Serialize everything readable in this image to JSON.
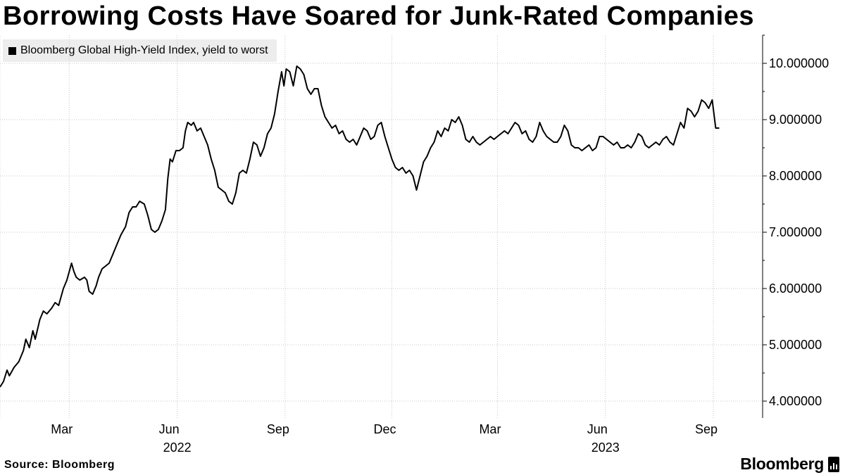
{
  "header": {
    "title": "Borrowing Costs Have Soared for Junk-Rated Companies"
  },
  "footer": {
    "source": "Source: Bloomberg",
    "logo_text": "Bloomberg"
  },
  "colors": {
    "line": "#000000",
    "grid": "#c8c8c8",
    "legend_bg": "#ededed"
  },
  "chart_data": {
    "type": "line",
    "title": "Borrowing Costs Have Soared for Junk-Rated Companies",
    "legend_position": "top-left",
    "grid": true,
    "xlabel": "",
    "ylabel": "",
    "ylim": [
      3.7,
      10.5
    ],
    "xlim": [
      0,
      650
    ],
    "y_ticks": [
      {
        "value": 4,
        "label": "4.000000"
      },
      {
        "value": 5,
        "label": "5.000000"
      },
      {
        "value": 6,
        "label": "6.000000"
      },
      {
        "value": 7,
        "label": "7.000000"
      },
      {
        "value": 8,
        "label": "8.000000"
      },
      {
        "value": 9,
        "label": "9.000000"
      },
      {
        "value": 10,
        "label": "10.000000"
      }
    ],
    "x_ticks": [
      {
        "day": 0,
        "label": ""
      },
      {
        "day": 59,
        "label": "Mar"
      },
      {
        "day": 151,
        "label": "Jun"
      },
      {
        "day": 243,
        "label": "Sep"
      },
      {
        "day": 334,
        "label": "Dec"
      },
      {
        "day": 424,
        "label": "Mar"
      },
      {
        "day": 516,
        "label": "Jun"
      },
      {
        "day": 608,
        "label": "Sep"
      }
    ],
    "year_labels": [
      {
        "day": 151,
        "label": "2022"
      },
      {
        "day": 516,
        "label": "2023"
      }
    ],
    "series": [
      {
        "name": "Bloomberg Global High-Yield Index, yield to worst",
        "points": [
          [
            0,
            4.25
          ],
          [
            3,
            4.35
          ],
          [
            6,
            4.55
          ],
          [
            8,
            4.45
          ],
          [
            12,
            4.6
          ],
          [
            16,
            4.7
          ],
          [
            20,
            4.9
          ],
          [
            22,
            5.1
          ],
          [
            25,
            4.95
          ],
          [
            28,
            5.25
          ],
          [
            30,
            5.1
          ],
          [
            34,
            5.45
          ],
          [
            37,
            5.6
          ],
          [
            40,
            5.55
          ],
          [
            44,
            5.65
          ],
          [
            47,
            5.75
          ],
          [
            50,
            5.7
          ],
          [
            54,
            6.0
          ],
          [
            57,
            6.15
          ],
          [
            59,
            6.3
          ],
          [
            61,
            6.45
          ],
          [
            63,
            6.3
          ],
          [
            65,
            6.2
          ],
          [
            68,
            6.15
          ],
          [
            72,
            6.2
          ],
          [
            74,
            6.15
          ],
          [
            76,
            5.95
          ],
          [
            79,
            5.9
          ],
          [
            82,
            6.05
          ],
          [
            84,
            6.2
          ],
          [
            87,
            6.35
          ],
          [
            90,
            6.4
          ],
          [
            93,
            6.45
          ],
          [
            96,
            6.6
          ],
          [
            100,
            6.8
          ],
          [
            103,
            6.95
          ],
          [
            107,
            7.1
          ],
          [
            110,
            7.35
          ],
          [
            113,
            7.45
          ],
          [
            116,
            7.45
          ],
          [
            119,
            7.55
          ],
          [
            123,
            7.5
          ],
          [
            126,
            7.3
          ],
          [
            129,
            7.05
          ],
          [
            132,
            7.0
          ],
          [
            135,
            7.05
          ],
          [
            138,
            7.2
          ],
          [
            141,
            7.4
          ],
          [
            143,
            7.95
          ],
          [
            145,
            8.3
          ],
          [
            147,
            8.25
          ],
          [
            150,
            8.45
          ],
          [
            153,
            8.45
          ],
          [
            156,
            8.5
          ],
          [
            158,
            8.8
          ],
          [
            160,
            8.95
          ],
          [
            163,
            8.9
          ],
          [
            165,
            8.95
          ],
          [
            168,
            8.8
          ],
          [
            171,
            8.85
          ],
          [
            174,
            8.7
          ],
          [
            177,
            8.55
          ],
          [
            180,
            8.3
          ],
          [
            183,
            8.1
          ],
          [
            186,
            7.8
          ],
          [
            189,
            7.75
          ],
          [
            192,
            7.7
          ],
          [
            195,
            7.55
          ],
          [
            198,
            7.5
          ],
          [
            201,
            7.7
          ],
          [
            204,
            8.05
          ],
          [
            207,
            8.1
          ],
          [
            210,
            8.05
          ],
          [
            213,
            8.3
          ],
          [
            216,
            8.6
          ],
          [
            219,
            8.55
          ],
          [
            222,
            8.35
          ],
          [
            225,
            8.5
          ],
          [
            228,
            8.75
          ],
          [
            231,
            8.85
          ],
          [
            234,
            9.1
          ],
          [
            237,
            9.5
          ],
          [
            240,
            9.85
          ],
          [
            242,
            9.6
          ],
          [
            244,
            9.9
          ],
          [
            247,
            9.85
          ],
          [
            250,
            9.6
          ],
          [
            253,
            9.95
          ],
          [
            256,
            9.9
          ],
          [
            259,
            9.8
          ],
          [
            262,
            9.55
          ],
          [
            265,
            9.45
          ],
          [
            268,
            9.55
          ],
          [
            271,
            9.55
          ],
          [
            274,
            9.25
          ],
          [
            277,
            9.05
          ],
          [
            280,
            8.95
          ],
          [
            283,
            8.85
          ],
          [
            286,
            8.9
          ],
          [
            289,
            8.75
          ],
          [
            292,
            8.8
          ],
          [
            295,
            8.65
          ],
          [
            298,
            8.6
          ],
          [
            301,
            8.65
          ],
          [
            304,
            8.55
          ],
          [
            307,
            8.7
          ],
          [
            310,
            8.85
          ],
          [
            313,
            8.8
          ],
          [
            316,
            8.65
          ],
          [
            319,
            8.7
          ],
          [
            322,
            8.9
          ],
          [
            325,
            8.95
          ],
          [
            328,
            8.7
          ],
          [
            331,
            8.5
          ],
          [
            334,
            8.3
          ],
          [
            337,
            8.15
          ],
          [
            340,
            8.1
          ],
          [
            343,
            8.15
          ],
          [
            346,
            8.05
          ],
          [
            349,
            8.1
          ],
          [
            352,
            8.0
          ],
          [
            355,
            7.75
          ],
          [
            358,
            8.0
          ],
          [
            361,
            8.25
          ],
          [
            364,
            8.35
          ],
          [
            367,
            8.5
          ],
          [
            370,
            8.6
          ],
          [
            373,
            8.8
          ],
          [
            376,
            8.7
          ],
          [
            379,
            8.85
          ],
          [
            382,
            8.8
          ],
          [
            385,
            9.0
          ],
          [
            388,
            8.95
          ],
          [
            391,
            9.05
          ],
          [
            394,
            8.9
          ],
          [
            397,
            8.65
          ],
          [
            400,
            8.6
          ],
          [
            403,
            8.7
          ],
          [
            406,
            8.6
          ],
          [
            409,
            8.55
          ],
          [
            412,
            8.6
          ],
          [
            415,
            8.65
          ],
          [
            418,
            8.7
          ],
          [
            421,
            8.65
          ],
          [
            424,
            8.7
          ],
          [
            427,
            8.75
          ],
          [
            430,
            8.8
          ],
          [
            433,
            8.75
          ],
          [
            436,
            8.85
          ],
          [
            439,
            8.95
          ],
          [
            442,
            8.9
          ],
          [
            445,
            8.75
          ],
          [
            448,
            8.8
          ],
          [
            451,
            8.65
          ],
          [
            454,
            8.6
          ],
          [
            457,
            8.7
          ],
          [
            460,
            8.95
          ],
          [
            463,
            8.8
          ],
          [
            466,
            8.7
          ],
          [
            469,
            8.65
          ],
          [
            472,
            8.6
          ],
          [
            475,
            8.6
          ],
          [
            478,
            8.7
          ],
          [
            481,
            8.9
          ],
          [
            484,
            8.8
          ],
          [
            487,
            8.55
          ],
          [
            490,
            8.5
          ],
          [
            493,
            8.5
          ],
          [
            496,
            8.45
          ],
          [
            499,
            8.5
          ],
          [
            502,
            8.55
          ],
          [
            505,
            8.45
          ],
          [
            508,
            8.5
          ],
          [
            511,
            8.7
          ],
          [
            514,
            8.7
          ],
          [
            517,
            8.65
          ],
          [
            520,
            8.6
          ],
          [
            523,
            8.55
          ],
          [
            526,
            8.6
          ],
          [
            529,
            8.5
          ],
          [
            532,
            8.5
          ],
          [
            535,
            8.55
          ],
          [
            538,
            8.5
          ],
          [
            541,
            8.6
          ],
          [
            544,
            8.75
          ],
          [
            547,
            8.7
          ],
          [
            550,
            8.55
          ],
          [
            553,
            8.5
          ],
          [
            556,
            8.55
          ],
          [
            559,
            8.6
          ],
          [
            562,
            8.55
          ],
          [
            565,
            8.65
          ],
          [
            568,
            8.7
          ],
          [
            571,
            8.6
          ],
          [
            574,
            8.55
          ],
          [
            577,
            8.75
          ],
          [
            580,
            8.95
          ],
          [
            583,
            8.85
          ],
          [
            586,
            9.2
          ],
          [
            589,
            9.15
          ],
          [
            592,
            9.05
          ],
          [
            595,
            9.15
          ],
          [
            598,
            9.35
          ],
          [
            601,
            9.3
          ],
          [
            604,
            9.2
          ],
          [
            607,
            9.35
          ],
          [
            610,
            8.85
          ],
          [
            613,
            8.85
          ]
        ]
      }
    ]
  }
}
